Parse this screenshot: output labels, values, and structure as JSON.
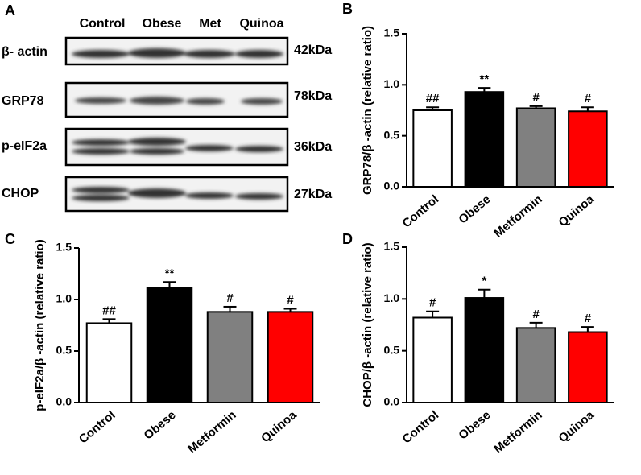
{
  "blot": {
    "panel_label": "A",
    "lanes": [
      "Control",
      "Obese",
      "Met",
      "Quinoa"
    ],
    "rows": [
      {
        "protein": "β- actin",
        "size": "42kDa"
      },
      {
        "protein": "GRP78",
        "size": "78kDa"
      },
      {
        "protein": "p-eIF2a",
        "size": "36kDa"
      },
      {
        "protein": "CHOP",
        "size": "27kDa"
      }
    ]
  },
  "chart_data": [
    {
      "type": "bar",
      "panel_label": "B",
      "y_label": "GRP78/β -actin (relative ratio)",
      "categories": [
        "Control",
        "Obese",
        "Metformin",
        "Quinoa"
      ],
      "values": [
        0.75,
        0.93,
        0.77,
        0.74
      ],
      "errors": [
        0.03,
        0.04,
        0.02,
        0.04
      ],
      "annotations": [
        "##",
        "**",
        "#",
        "#"
      ],
      "colors": [
        "#ffffff",
        "#000000",
        "#808080",
        "#ff0000"
      ],
      "ylim": [
        0,
        1.5
      ],
      "yticks": [
        {
          "value": 0,
          "label": "0.0"
        },
        0.5,
        {
          "value": 1,
          "label": "1.0"
        },
        1.5
      ]
    },
    {
      "type": "bar",
      "panel_label": "C",
      "y_label": "p-eIF2a/β -actin (relative ratio)",
      "categories": [
        "Control",
        "Obese",
        "Metformin",
        "Quinoa"
      ],
      "values": [
        0.77,
        1.11,
        0.88,
        0.88
      ],
      "errors": [
        0.04,
        0.06,
        0.05,
        0.03
      ],
      "annotations": [
        "##",
        "**",
        "#",
        "#"
      ],
      "colors": [
        "#ffffff",
        "#000000",
        "#808080",
        "#ff0000"
      ],
      "ylim": [
        0,
        1.5
      ],
      "yticks": [
        {
          "value": 0,
          "label": "0.0"
        },
        0.5,
        {
          "value": 1,
          "label": "1.0"
        },
        1.5
      ]
    },
    {
      "type": "bar",
      "panel_label": "D",
      "y_label": "CHOP/β -actin (relative ratio)",
      "categories": [
        "Control",
        "Obese",
        "Metformin",
        "Quinoa"
      ],
      "values": [
        0.82,
        1.01,
        0.72,
        0.68
      ],
      "errors": [
        0.06,
        0.08,
        0.05,
        0.05
      ],
      "annotations": [
        "#",
        "*",
        "#",
        "#"
      ],
      "colors": [
        "#ffffff",
        "#000000",
        "#808080",
        "#ff0000"
      ],
      "ylim": [
        0,
        1.5
      ],
      "yticks": [
        {
          "value": 0,
          "label": "0.0"
        },
        0.5,
        {
          "value": 1,
          "label": "1.0"
        },
        1.5
      ]
    }
  ]
}
